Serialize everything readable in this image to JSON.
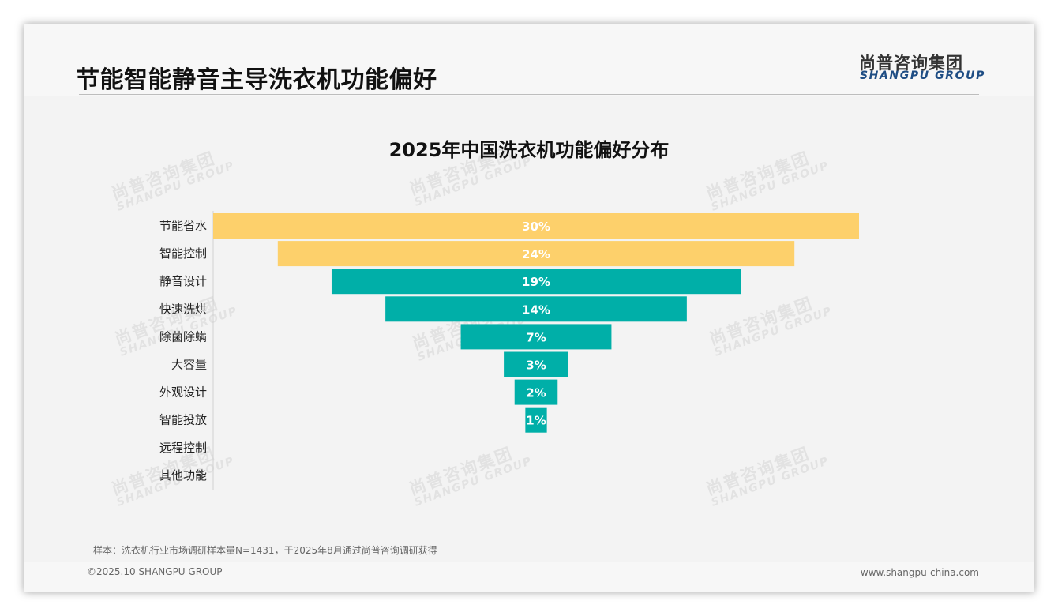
{
  "page": {
    "title": "节能智能静音主导洗衣机功能偏好",
    "logo_cn": "尚普咨询集团",
    "logo_en": "SHANGPU GROUP",
    "watermark_cn": "尚普咨询集团",
    "watermark_en": "SHANGPU GROUP",
    "source_note": "样本：洗衣机行业市场调研样本量N=1431，于2025年8月通过尚普咨询调研获得",
    "copyright": "©2025.10 SHANGPU GROUP",
    "website": "www.shangpu-china.com"
  },
  "chart_data": {
    "type": "bar",
    "title": "2025年中国洗衣机功能偏好分布",
    "orientation": "horizontal-centered-funnel",
    "categories": [
      "节能省水",
      "智能控制",
      "静音设计",
      "快速洗烘",
      "除菌除螨",
      "大容量",
      "外观设计",
      "智能投放",
      "远程控制",
      "其他功能"
    ],
    "values": [
      30,
      24,
      19,
      14,
      7,
      3,
      2,
      1,
      0,
      0
    ],
    "value_labels": [
      "30%",
      "24%",
      "19%",
      "14%",
      "7%",
      "3%",
      "2%",
      "1%",
      "",
      ""
    ],
    "colors": [
      "#fdd06b",
      "#fdd06b",
      "#00afa8",
      "#00afa8",
      "#00afa8",
      "#00afa8",
      "#00afa8",
      "#00afa8",
      "#00afa8",
      "#00afa8"
    ],
    "label_color": "#ffffff",
    "xlim": [
      0,
      30
    ],
    "legend": "none",
    "grid": false
  }
}
